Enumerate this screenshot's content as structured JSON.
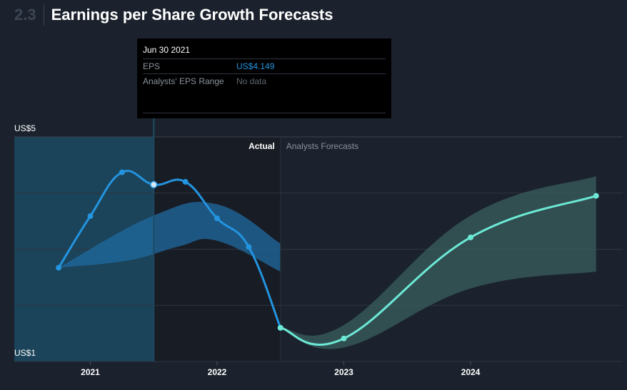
{
  "section": {
    "number": "2.3",
    "title": "Earnings per Share Growth Forecasts"
  },
  "tooltip": {
    "date": "Jun 30 2021",
    "rows": [
      {
        "label": "EPS",
        "value": "US$4.149"
      },
      {
        "label": "Analysts' EPS Range",
        "value": "No data"
      }
    ]
  },
  "colors": {
    "background": "#1b222d",
    "actual_line": "#2394df",
    "forecast_line": "#6ce9d5",
    "forecast_band": "#3d6766",
    "past_band": "#1f6aa0",
    "highlight": "#1c4a63"
  },
  "chart_data": {
    "type": "line",
    "y_axis": {
      "min": 1,
      "max": 5,
      "min_label": "US$1",
      "max_label": "US$5"
    },
    "x_axis": {
      "range": [
        2020.4,
        2025.2
      ],
      "ticks": [
        2021,
        2022,
        2023,
        2024
      ]
    },
    "grid": true,
    "regions": {
      "actual_label": "Actual",
      "forecast_label": "Analysts Forecasts",
      "divider_x": 2022.5
    },
    "highlight_x": 2021.5,
    "series": [
      {
        "role": "actual",
        "points": [
          {
            "x": 2020.75,
            "y": 2.67
          },
          {
            "x": 2021.0,
            "y": 3.59
          },
          {
            "x": 2021.25,
            "y": 4.37
          },
          {
            "x": 2021.5,
            "y": 4.149
          },
          {
            "x": 2021.75,
            "y": 4.2
          },
          {
            "x": 2022.0,
            "y": 3.55
          },
          {
            "x": 2022.25,
            "y": 3.04
          },
          {
            "x": 2022.5,
            "y": 1.6
          }
        ]
      },
      {
        "role": "forecast",
        "points": [
          {
            "x": 2022.5,
            "y": 1.6
          },
          {
            "x": 2023.0,
            "y": 1.41
          },
          {
            "x": 2024.0,
            "y": 3.21
          },
          {
            "x": 2024.99,
            "y": 3.95
          }
        ]
      }
    ],
    "bands": [
      {
        "role": "past_estimates",
        "upper": [
          {
            "x": 2020.75,
            "y": 2.67
          },
          {
            "x": 2021.5,
            "y": 3.6
          },
          {
            "x": 2022.0,
            "y": 3.8
          },
          {
            "x": 2022.5,
            "y": 3.1
          }
        ],
        "lower": [
          {
            "x": 2020.75,
            "y": 2.67
          },
          {
            "x": 2021.3,
            "y": 2.8
          },
          {
            "x": 2021.7,
            "y": 3.05
          },
          {
            "x": 2022.0,
            "y": 3.15
          },
          {
            "x": 2022.5,
            "y": 2.6
          }
        ]
      },
      {
        "role": "forecast_range",
        "upper": [
          {
            "x": 2022.5,
            "y": 1.6
          },
          {
            "x": 2023.0,
            "y": 1.65
          },
          {
            "x": 2024.0,
            "y": 3.6
          },
          {
            "x": 2024.99,
            "y": 4.3
          }
        ],
        "lower": [
          {
            "x": 2022.5,
            "y": 1.6
          },
          {
            "x": 2023.0,
            "y": 1.25
          },
          {
            "x": 2024.0,
            "y": 2.3
          },
          {
            "x": 2024.99,
            "y": 2.6
          }
        ]
      }
    ]
  }
}
